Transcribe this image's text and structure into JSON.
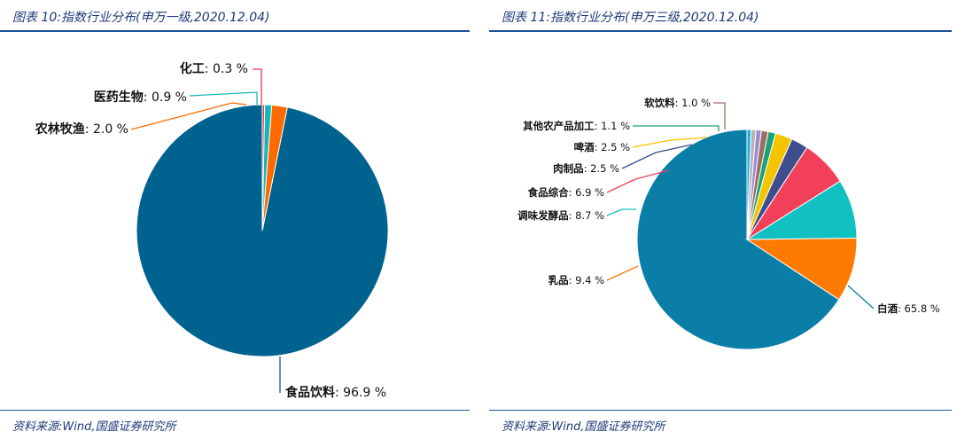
{
  "panels": [
    {
      "caption": "图表 10:指数行业分布(申万一级,2020.12.04)",
      "source": "资料来源:Wind,国盛证券研究所"
    },
    {
      "caption": "图表 11:指数行业分布(申万三级,2020.12.04)",
      "source": "资料来源:Wind,国盛证券研究所"
    }
  ],
  "chart_data": [
    {
      "type": "pie",
      "slices": [
        {
          "label": "食品饮料",
          "value": 96.9,
          "display": "96.9 %",
          "color": "#00628f"
        },
        {
          "label": "农林牧渔",
          "value": 2.0,
          "display": "2.0 %",
          "color": "#ff6a00"
        },
        {
          "label": "医药生物",
          "value": 0.9,
          "display": "0.9 %",
          "color": "#14b8b8"
        },
        {
          "label": "化工",
          "value": 0.3,
          "display": "0.3 %",
          "color": "#e8354c"
        }
      ]
    },
    {
      "type": "pie",
      "slices": [
        {
          "label": "白酒",
          "value": 65.8,
          "display": "65.8 %",
          "color": "#0b7ea8"
        },
        {
          "label": "乳品",
          "value": 9.4,
          "display": "9.4 %",
          "color": "#ff7a00"
        },
        {
          "label": "调味发酵品",
          "value": 8.7,
          "display": "8.7 %",
          "color": "#11c0c0"
        },
        {
          "label": "食品综合",
          "value": 6.9,
          "display": "6.9 %",
          "color": "#f2405a"
        },
        {
          "label": "肉制品",
          "value": 2.5,
          "display": "2.5 %",
          "color": "#3e4e8c"
        },
        {
          "label": "啤酒",
          "value": 2.5,
          "display": "2.5 %",
          "color": "#f5c400"
        },
        {
          "label": "其他农产品加工",
          "value": 1.1,
          "display": "1.1 %",
          "color": "#1aa37a"
        },
        {
          "label": "软饮料",
          "value": 1.0,
          "display": "1.0 %",
          "color": "#9a7060"
        },
        {
          "label": "",
          "value": 0.8,
          "display": "",
          "color": "#a28bd4"
        },
        {
          "label": "",
          "value": 0.7,
          "display": "",
          "color": "#b4b4b4"
        },
        {
          "label": "",
          "value": 0.6,
          "display": "",
          "color": "#1ab0d8"
        }
      ]
    }
  ]
}
